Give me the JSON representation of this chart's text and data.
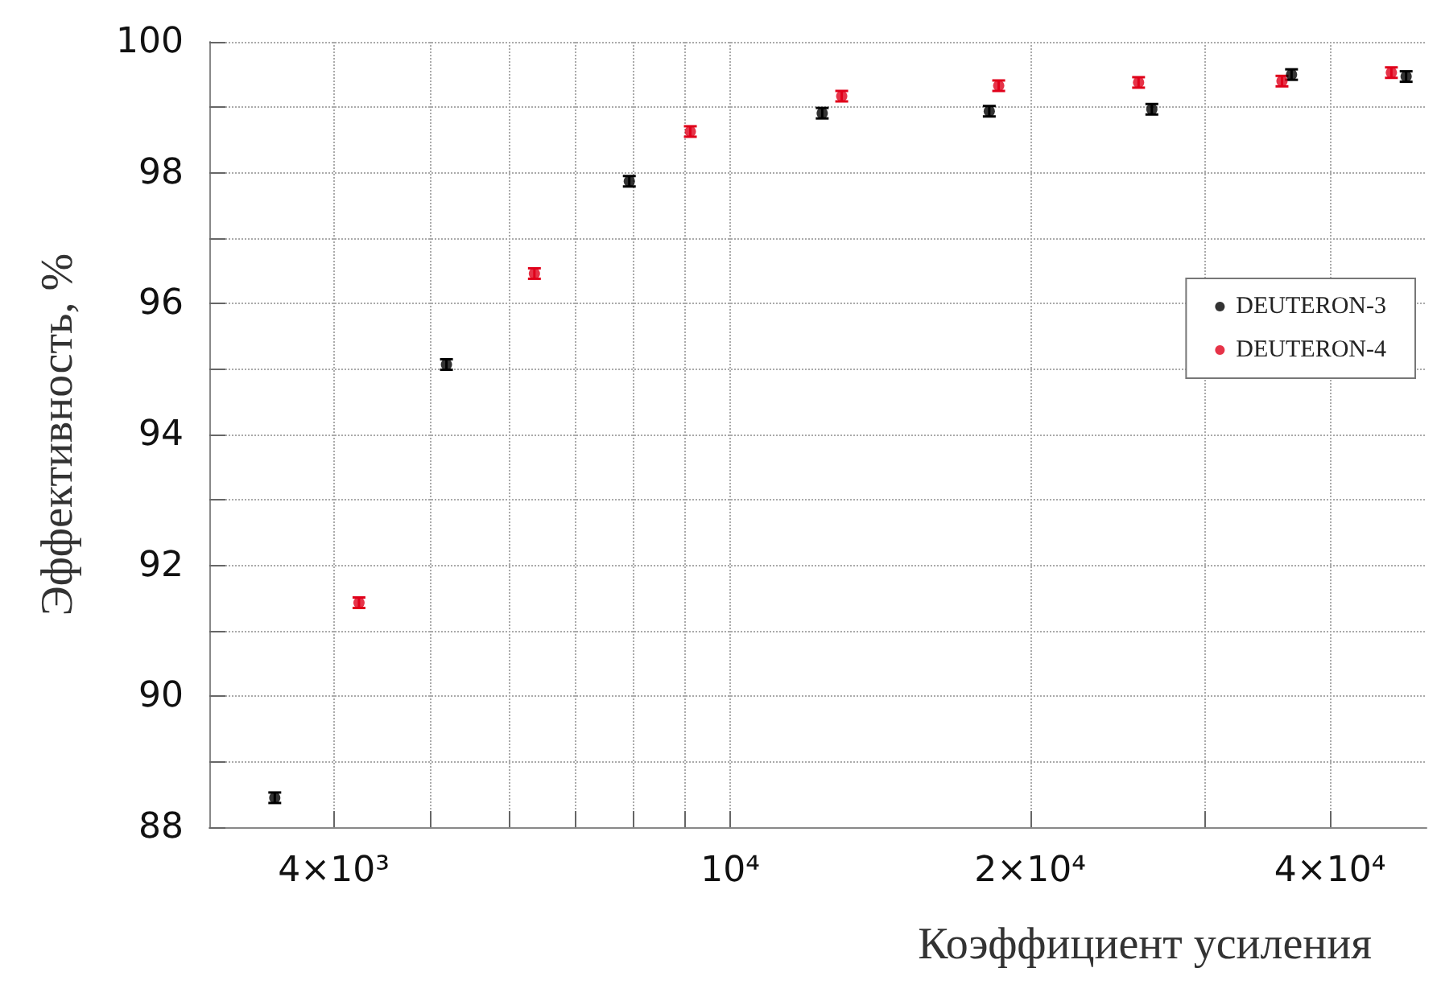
{
  "chart_data": {
    "type": "scatter",
    "xlabel": "Коэффициент усиления",
    "ylabel": "Эффективность, %",
    "log": "x",
    "grid": true,
    "legend": "right",
    "marker": "circle",
    "xlim": [
      3000,
      50000
    ],
    "xticks": [
      {
        "value": 4000,
        "label": "4×10³"
      },
      {
        "value": 5000,
        "label": null
      },
      {
        "value": 6000,
        "label": null
      },
      {
        "value": 7000,
        "label": null
      },
      {
        "value": 8000,
        "label": null
      },
      {
        "value": 9000,
        "label": null
      },
      {
        "value": 10000,
        "label": "10⁴"
      },
      {
        "value": 20000,
        "label": "2×10⁴"
      },
      {
        "value": 30000,
        "label": null
      },
      {
        "value": 40000,
        "label": "4×10⁴"
      }
    ],
    "ylim": [
      88,
      100
    ],
    "yticks": [
      88,
      {
        "value": 89,
        "label": null
      },
      90,
      {
        "value": 91,
        "label": null
      },
      92,
      {
        "value": 93,
        "label": null
      },
      94,
      {
        "value": 95,
        "label": null
      },
      96,
      {
        "value": 97,
        "label": null
      },
      98,
      {
        "value": 99,
        "label": null
      },
      100
    ],
    "series": [
      {
        "name": "DEUTERON-3",
        "color": "#000000",
        "x": [
          3490,
          5190,
          7920,
          12370,
          18200,
          26500,
          36600,
          47700
        ],
        "values": [
          88.45,
          95.07,
          97.87,
          98.91,
          98.94,
          98.97,
          99.5,
          99.47
        ],
        "errors": [
          0.08,
          0.08,
          0.08,
          0.08,
          0.08,
          0.08,
          0.08,
          0.08
        ]
      },
      {
        "name": "DEUTERON-4",
        "color": "#e0001a",
        "x": [
          4240,
          6360,
          9120,
          12940,
          18600,
          25700,
          35800,
          46100
        ],
        "values": [
          91.43,
          96.46,
          98.63,
          99.17,
          99.33,
          99.38,
          99.4,
          99.53
        ],
        "errors": [
          0.08,
          0.08,
          0.08,
          0.08,
          0.08,
          0.08,
          0.08,
          0.08
        ]
      }
    ]
  }
}
